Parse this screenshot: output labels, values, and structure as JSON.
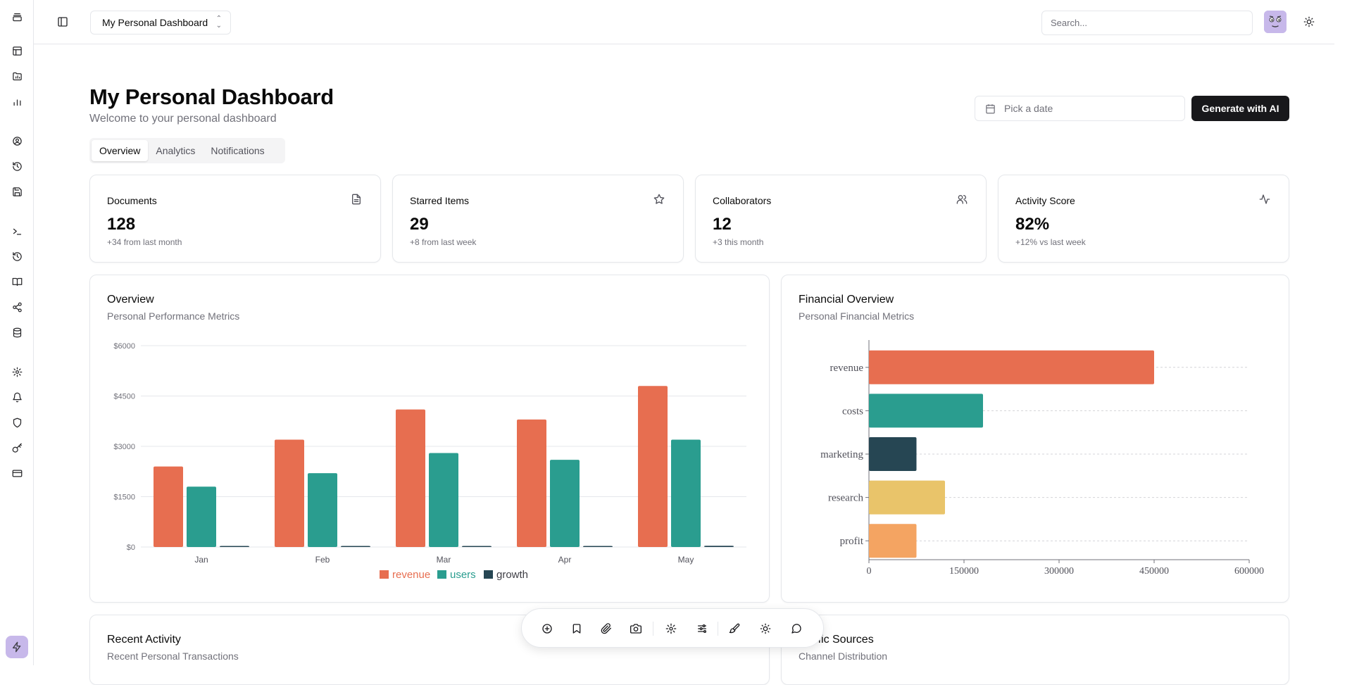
{
  "header": {
    "dashboard_select": "My Personal Dashboard",
    "search_placeholder": "Search..."
  },
  "page": {
    "title": "My Personal Dashboard",
    "subtitle": "Welcome to your personal dashboard",
    "date_placeholder": "Pick a date",
    "generate_label": "Generate with AI",
    "tabs": [
      {
        "label": "Overview",
        "active": true
      },
      {
        "label": "Analytics",
        "active": false
      },
      {
        "label": "Notifications",
        "active": false
      }
    ]
  },
  "stats": [
    {
      "label": "Documents",
      "value": "128",
      "delta": "+34 from last month",
      "icon": "file-text-icon"
    },
    {
      "label": "Starred Items",
      "value": "29",
      "delta": "+8 from last week",
      "icon": "star-icon"
    },
    {
      "label": "Collaborators",
      "value": "12",
      "delta": "+3 this month",
      "icon": "users-icon"
    },
    {
      "label": "Activity Score",
      "value": "82%",
      "delta": "+12% vs last week",
      "icon": "activity-icon"
    }
  ],
  "cards": {
    "overview": {
      "title": "Overview",
      "subtitle": "Personal Performance Metrics"
    },
    "financial": {
      "title": "Financial Overview",
      "subtitle": "Personal Financial Metrics"
    },
    "activity": {
      "title": "Recent Activity",
      "subtitle": "Recent Personal Transactions"
    },
    "traffic": {
      "title": "Traffic Sources",
      "subtitle": "Channel Distribution"
    }
  },
  "colors": {
    "revenue": "#e76e50",
    "users": "#2a9d8f",
    "growth": "#264653",
    "research": "#e9c46a",
    "profit": "#f4a462"
  },
  "chart_data": [
    {
      "type": "bar",
      "categories": [
        "Jan",
        "Feb",
        "Mar",
        "Apr",
        "May"
      ],
      "series": [
        {
          "name": "revenue",
          "values": [
            2400,
            3200,
            4100,
            3800,
            4800
          ]
        },
        {
          "name": "users",
          "values": [
            1800,
            2200,
            2800,
            2600,
            3200
          ]
        },
        {
          "name": "growth",
          "values": [
            24,
            28,
            32,
            30,
            36
          ]
        }
      ],
      "ylim": [
        0,
        6000
      ],
      "yticks": [
        "$0",
        "$1500",
        "$3000",
        "$4500",
        "$6000"
      ],
      "ytick_values": [
        0,
        1500,
        3000,
        4500,
        6000
      ],
      "legend": "bottom",
      "grid": true
    },
    {
      "type": "bar",
      "orientation": "horizontal",
      "categories": [
        "revenue",
        "costs",
        "marketing",
        "research",
        "profit"
      ],
      "values": [
        450000,
        180000,
        75000,
        120000,
        75000
      ],
      "xlim": [
        0,
        600000
      ],
      "xticks": [
        "0",
        "150000",
        "300000",
        "450000",
        "600000"
      ],
      "xtick_values": [
        0,
        150000,
        300000,
        450000,
        600000
      ],
      "grid": true
    }
  ]
}
